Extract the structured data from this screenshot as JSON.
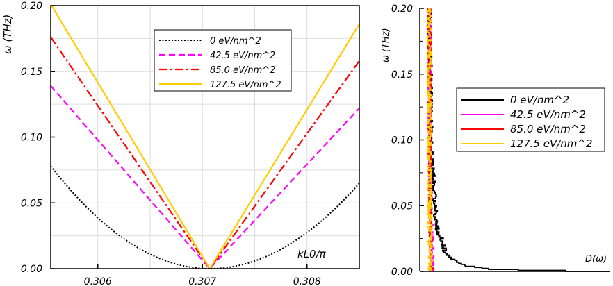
{
  "chart_data": [
    {
      "type": "line",
      "title": "",
      "xlabel": "kL0/π",
      "ylabel": "ω (THz)",
      "xlim": [
        0.30555,
        0.3085
      ],
      "ylim": [
        0,
        0.2
      ],
      "xticks": [
        0.306,
        0.307,
        0.308
      ],
      "xtick_labels": [
        "0.306",
        "0.307",
        "0.308"
      ],
      "yticks": [
        0,
        0.05,
        0.1,
        0.15,
        0.2
      ],
      "ytick_labels": [
        "0.00",
        "0.05",
        "0.10",
        "0.15",
        "0.20"
      ],
      "grid": true,
      "legend_position": "top-right",
      "x_min_point": 0.30707,
      "series": [
        {
          "name": "0 eV/nm^2",
          "color": "#000000",
          "style": "dotted",
          "shape": "parabola",
          "values_at_xlim": [
            0.078,
            0.065
          ],
          "y_at_min": 0.0
        },
        {
          "name": "42.5 eV/nm^2",
          "color": "#ff00ff",
          "style": "dashed",
          "shape": "v",
          "values_at_xlim": [
            0.139,
            0.122
          ],
          "y_at_min": 0.0
        },
        {
          "name": "85.0 eV/nm^2",
          "color": "#ff0000",
          "style": "dashdot",
          "shape": "v",
          "values_at_xlim": [
            0.176,
            0.158
          ],
          "y_at_min": 0.0
        },
        {
          "name": "127.5 eV/nm^2",
          "color": "#ffcc00",
          "style": "solid",
          "shape": "v",
          "values_at_xlim": [
            0.201,
            0.186
          ],
          "y_at_min": 0.0
        }
      ]
    },
    {
      "type": "line",
      "title": "",
      "xlabel": "D(ω)",
      "ylabel": "ω (THz)",
      "ylim": [
        0,
        0.2
      ],
      "xlim": [
        0,
        1
      ],
      "yticks": [
        0,
        0.05,
        0.1,
        0.15,
        0.2
      ],
      "ytick_labels": [
        "0.00",
        "0.05",
        "0.10",
        "0.15",
        "0.20"
      ],
      "grid": false,
      "legend_position": "middle-right",
      "series": [
        {
          "name": "0 eV/nm^2",
          "color": "#000000",
          "omega": [
            0.0,
            0.002,
            0.005,
            0.01,
            0.015,
            0.02,
            0.025,
            0.03,
            0.04,
            0.05,
            0.08,
            0.12,
            0.16,
            0.2
          ],
          "D": [
            1.0,
            0.36,
            0.2,
            0.14,
            0.1,
            0.09,
            0.08,
            0.06,
            0.05,
            0.045,
            0.03,
            0.02,
            0.018,
            0.015
          ],
          "noise": 0.012
        },
        {
          "name": "42.5 eV/nm^2",
          "color": "#ff00ff",
          "omega": [
            0.0,
            0.005,
            0.01,
            0.03,
            0.06,
            0.1,
            0.15,
            0.2
          ],
          "D": [
            0.03,
            0.03,
            0.03,
            0.025,
            0.02,
            0.018,
            0.016,
            0.015
          ],
          "noise": 0.01
        },
        {
          "name": "85.0 eV/nm^2",
          "color": "#ff0000",
          "omega": [
            0.0,
            0.01,
            0.03,
            0.06,
            0.1,
            0.15,
            0.2
          ],
          "D": [
            0.025,
            0.025,
            0.02,
            0.018,
            0.016,
            0.015,
            0.014
          ],
          "noise": 0.01
        },
        {
          "name": "127.5 eV/nm^2",
          "color": "#ffcc00",
          "omega": [
            0.0,
            0.01,
            0.03,
            0.06,
            0.1,
            0.15,
            0.2
          ],
          "D": [
            0.02,
            0.02,
            0.018,
            0.016,
            0.015,
            0.014,
            0.013
          ],
          "noise": 0.012
        }
      ]
    }
  ]
}
